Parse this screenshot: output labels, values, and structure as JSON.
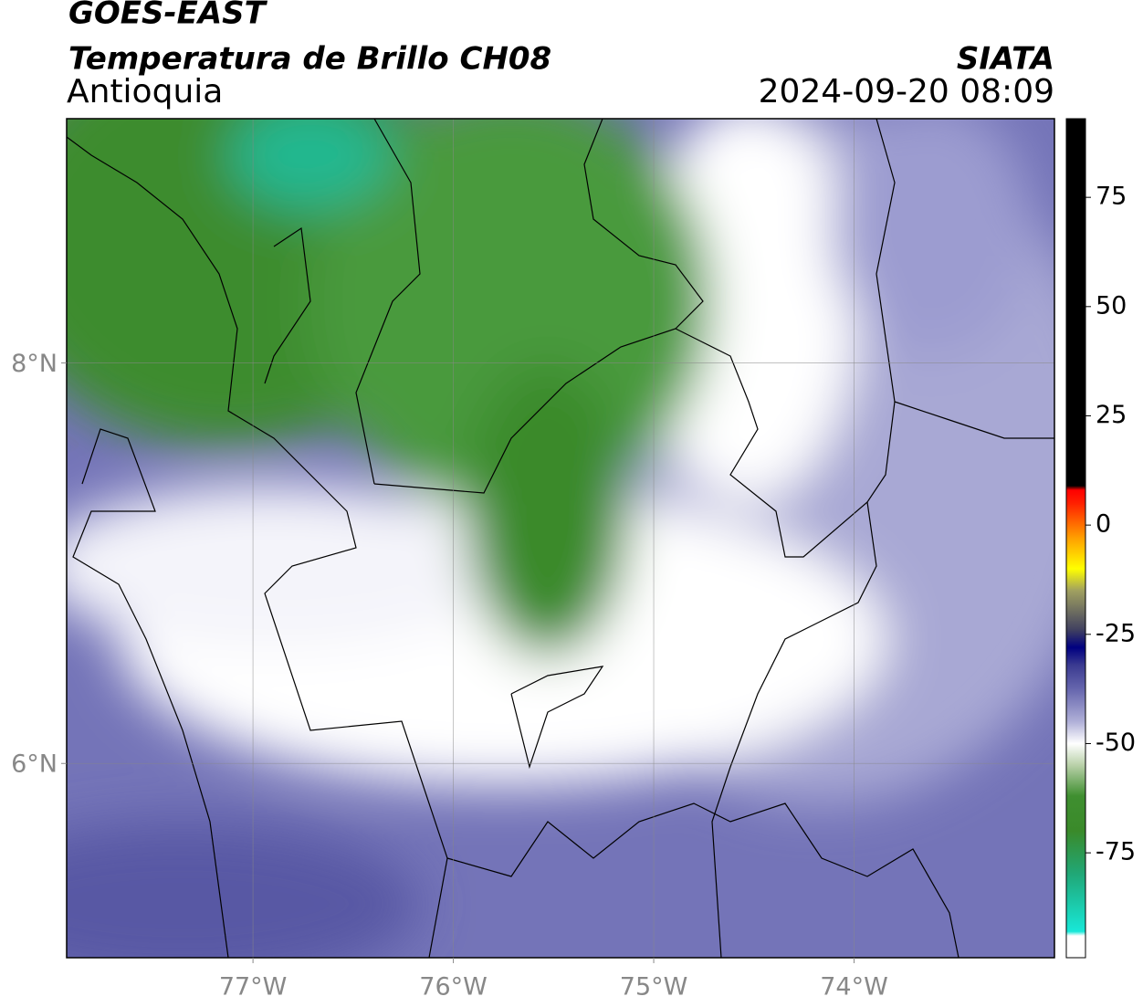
{
  "header": {
    "satellite": "GOES-EAST",
    "product": "Temperatura de Brillo CH08",
    "region": "Antioquia",
    "source": "SIATA",
    "datetime": "2024-09-20 08:09"
  },
  "map": {
    "xlim": [
      -77.93,
      -73.0
    ],
    "ylim": [
      5.03,
      9.22
    ],
    "xticks": [
      {
        "value": -77,
        "label": "77°W"
      },
      {
        "value": -76,
        "label": "76°W"
      },
      {
        "value": -75,
        "label": "75°W"
      },
      {
        "value": -74,
        "label": "74°W"
      }
    ],
    "yticks": [
      {
        "value": 6,
        "label": "6°N"
      },
      {
        "value": 8,
        "label": "8°N"
      }
    ],
    "grid": true
  },
  "colorbar": {
    "clim": [
      -99,
      93
    ],
    "ticks": [
      -75,
      -50,
      -25,
      0,
      25,
      50,
      75
    ],
    "colormap": [
      [
        -99,
        "#ffffff"
      ],
      [
        -94,
        "#ffffff"
      ],
      [
        -93,
        "#18e8d8"
      ],
      [
        -80,
        "#20a878"
      ],
      [
        -70,
        "#3a8a2a"
      ],
      [
        -62,
        "#3f8f30"
      ],
      [
        -55,
        "#b8d0a8"
      ],
      [
        -50,
        "#ffffff"
      ],
      [
        -45,
        "#b0b0d8"
      ],
      [
        -38,
        "#6a6ab0"
      ],
      [
        -32,
        "#3a3a90"
      ],
      [
        -28,
        "#000080"
      ],
      [
        -24,
        "#404060"
      ],
      [
        -15,
        "#a0a060"
      ],
      [
        -10,
        "#ffff00"
      ],
      [
        -3,
        "#ffa000"
      ],
      [
        5,
        "#ff2000"
      ],
      [
        8,
        "#ff0000"
      ],
      [
        9,
        "#000000"
      ],
      [
        93,
        "#000000"
      ]
    ]
  }
}
